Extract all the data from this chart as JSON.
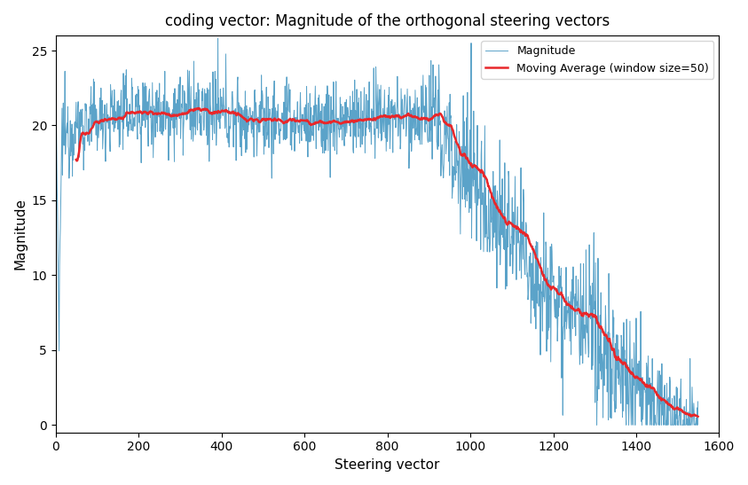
{
  "title": "coding vector: Magnitude of the orthogonal steering vectors",
  "xlabel": "Steering vector",
  "ylabel": "Magnitude",
  "n_points": 1550,
  "window_size": 50,
  "ylim": [
    -0.5,
    26
  ],
  "xlim": [
    0,
    1600
  ],
  "magnitude_color": "#5BA3C9",
  "moving_avg_color": "#E8272A",
  "magnitude_linewidth": 0.7,
  "moving_avg_linewidth": 1.8,
  "legend_entries": [
    "Magnitude",
    "Moving Average (window size=50)"
  ],
  "background_color": "#ffffff",
  "seed": 12345
}
